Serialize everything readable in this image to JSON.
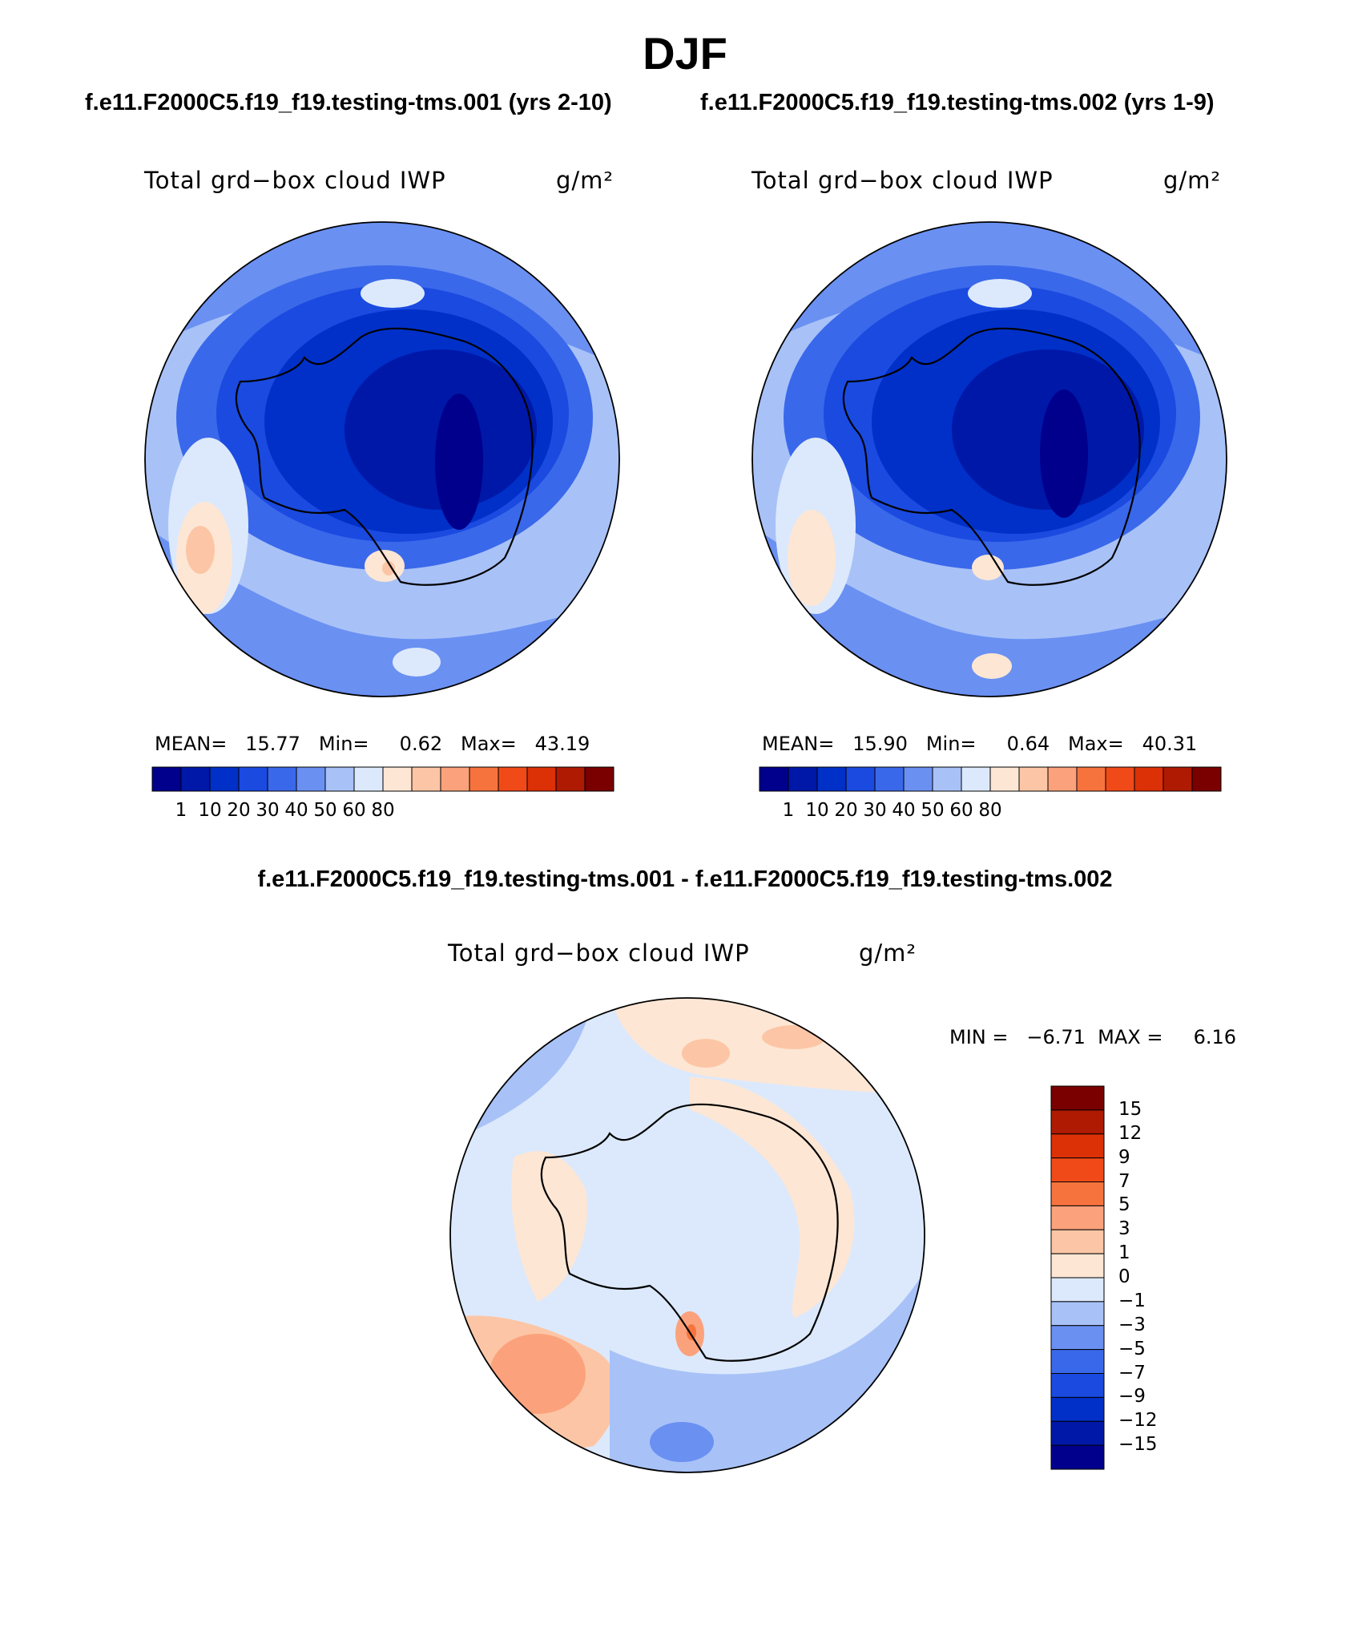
{
  "figure": {
    "season": "DJF",
    "left_case": "f.e11.F2000C5.f19_f19.testing-tms.001 (yrs 2-10)",
    "right_case": "f.e11.F2000C5.f19_f19.testing-tms.002 (yrs 1-9)",
    "diff_title": "f.e11.F2000C5.f19_f19.testing-tms.001 - f.e11.F2000C5.f19_f19.testing-tms.002"
  },
  "panels": [
    {
      "variable": "Total grd−box cloud IWP",
      "units": "g/m²",
      "stats_text": "MEAN=   15.77   Min=     0.62   Max=   43.19"
    },
    {
      "variable": "Total grd−box cloud IWP",
      "units": "g/m²",
      "stats_text": "MEAN=   15.90   Min=     0.64   Max=   40.31"
    }
  ],
  "diff_panel": {
    "variable": "Total grd−box cloud IWP",
    "units": "g/m²",
    "minmax_text": "MIN =   −6.71  MAX =     6.16"
  },
  "colorbar_main": {
    "labels": [
      "1",
      "10",
      "20",
      "30",
      "40",
      "50",
      "60",
      "80"
    ],
    "colors": [
      "#00008c",
      "#0018a8",
      "#0030c8",
      "#1a4ae0",
      "#3a68ea",
      "#6a90f2",
      "#a8c2f8",
      "#dce9fc",
      "#fde6d4",
      "#fcc6a6",
      "#fba27c",
      "#f7733e",
      "#f04a18",
      "#dc3006",
      "#ae1a02",
      "#7a0000"
    ]
  },
  "colorbar_diff": {
    "labels": [
      "15",
      "12",
      "9",
      "7",
      "5",
      "3",
      "1",
      "0",
      "−1",
      "−3",
      "−5",
      "−7",
      "−9",
      "−12",
      "−15"
    ],
    "colors": [
      "#7a0000",
      "#ae1a02",
      "#dc3006",
      "#f04a18",
      "#f7733e",
      "#fba27c",
      "#fcc6a6",
      "#fde6d4",
      "#dce9fc",
      "#a8c2f8",
      "#6a90f2",
      "#3a68ea",
      "#1a4ae0",
      "#0030c8",
      "#0018a8",
      "#00008c"
    ]
  },
  "map_colors": {
    "ocean_mid": "#6a90f2",
    "continent": "#0030c8",
    "interior": "#0018a8",
    "core": "#00008c",
    "diff_base": "#dce9fc",
    "diff_warm": "#fde6d4",
    "diff_warm2": "#fcc6a6",
    "diff_warm3": "#fba27c"
  }
}
